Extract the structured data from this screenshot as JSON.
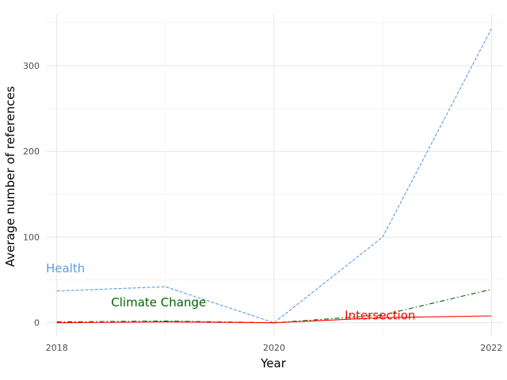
{
  "chart_data": {
    "type": "line",
    "xlabel": "Year",
    "ylabel": "Average number of references",
    "x": [
      2018,
      2019,
      2020,
      2021,
      2022
    ],
    "xlim": [
      2017.9,
      2022.1
    ],
    "ylim": [
      -16,
      360
    ],
    "xticks": [
      2018,
      2020,
      2022
    ],
    "yticks": [
      0,
      100,
      200,
      300
    ],
    "grid": true,
    "legend": "none (direct labels on lines)",
    "series": [
      {
        "name": "Health",
        "values": [
          37,
          42,
          0,
          100,
          343
        ],
        "color": "#5b9be6",
        "dash": "dashed",
        "label_at": [
          2017.9,
          59
        ]
      },
      {
        "name": "Climate Change",
        "values": [
          1,
          2,
          0,
          9,
          39
        ],
        "color": "#006400",
        "dash": "dashdot",
        "label_at": [
          2018.5,
          19
        ]
      },
      {
        "name": "Intersection",
        "values": [
          0,
          1,
          0,
          6,
          8
        ],
        "color": "#ff0000",
        "dash": "solid",
        "label_at": [
          2020.65,
          4
        ]
      }
    ]
  }
}
